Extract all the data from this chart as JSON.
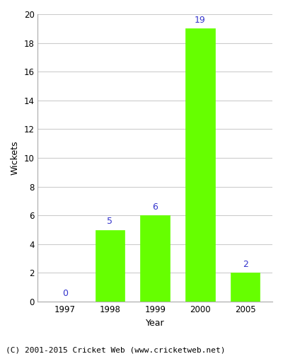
{
  "years": [
    "1997",
    "1998",
    "1999",
    "2000",
    "2005"
  ],
  "values": [
    0,
    5,
    6,
    19,
    2
  ],
  "bar_color": "#66ff00",
  "bar_edgecolor": "#66ff00",
  "label_color": "#3333cc",
  "xlabel": "Year",
  "ylabel": "Wickets",
  "ylim": [
    0,
    20
  ],
  "yticks": [
    0,
    2,
    4,
    6,
    8,
    10,
    12,
    14,
    16,
    18,
    20
  ],
  "grid_color": "#cccccc",
  "background_color": "#ffffff",
  "footer_text": "(C) 2001-2015 Cricket Web (www.cricketweb.net)",
  "label_fontsize": 9,
  "axis_label_fontsize": 9,
  "tick_fontsize": 8.5,
  "footer_fontsize": 8
}
